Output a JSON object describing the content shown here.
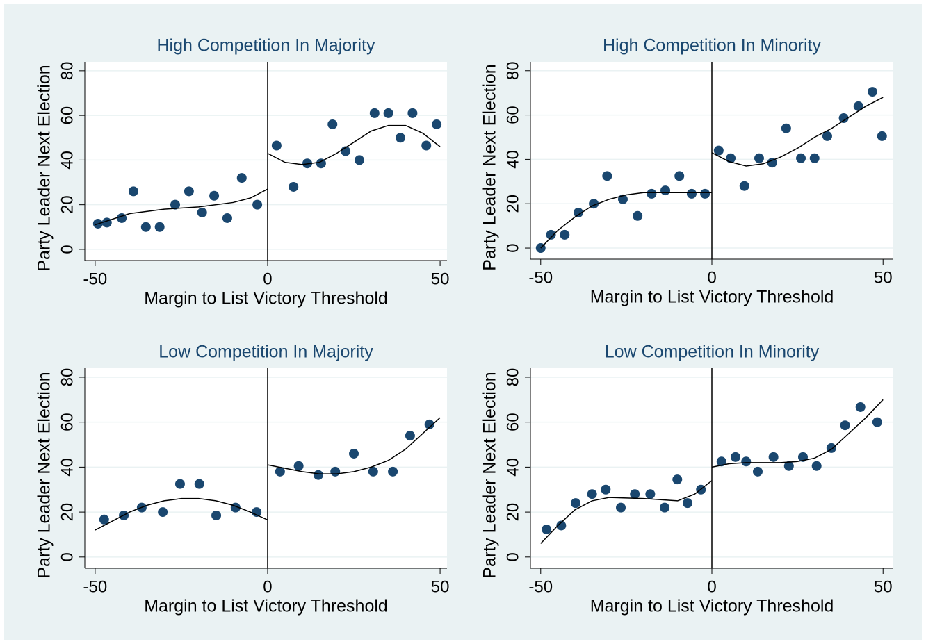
{
  "chart_data": [
    {
      "type": "scatter",
      "title": "High Competition In Majority",
      "xlabel": "Margin to List Victory Threshold",
      "ylabel": "Party Leader Next Election",
      "xlim": [
        -53,
        52
      ],
      "ylim": [
        -5,
        84
      ],
      "xticks": [
        -50,
        0,
        50
      ],
      "yticks": [
        0,
        20,
        40,
        60,
        80
      ],
      "grid": true,
      "vline": 0,
      "series": [
        {
          "type": "scatter",
          "color": "#1a476f",
          "x": [
            -49.2,
            -46.6,
            -42.3,
            -38.9,
            -35.3,
            -31.3,
            -26.8,
            -22.8,
            -19,
            -15.5,
            -11.7,
            -7.5,
            -3,
            2.6,
            7.5,
            11.5,
            15.5,
            18.8,
            22.6,
            26.6,
            31,
            35,
            38.5,
            42,
            46,
            49
          ],
          "values": [
            11.5,
            12,
            14,
            26,
            10,
            10,
            20,
            26,
            16.5,
            24,
            14,
            32,
            20,
            46.5,
            28,
            38.5,
            38.5,
            56,
            44,
            40,
            61,
            61,
            50,
            61,
            46.5,
            56
          ]
        },
        {
          "type": "line",
          "color": "#000000",
          "x": [
            -50,
            -40,
            -30,
            -20,
            -10,
            -5,
            0
          ],
          "values": [
            11,
            16,
            18,
            19,
            21,
            23,
            27
          ]
        },
        {
          "type": "line",
          "color": "#000000",
          "x": [
            0,
            5,
            10,
            15,
            20,
            25,
            30,
            35,
            40,
            45,
            50
          ],
          "values": [
            43,
            39,
            38,
            39,
            43,
            48,
            53,
            55.5,
            55.5,
            52,
            46
          ]
        }
      ]
    },
    {
      "type": "scatter",
      "title": "High Competition In Minority",
      "xlabel": "Margin to List Victory Threshold",
      "ylabel": "Party Leader Next Election",
      "xlim": [
        -53,
        53
      ],
      "ylim": [
        -5,
        84
      ],
      "xticks": [
        -50,
        0,
        50
      ],
      "yticks": [
        0,
        20,
        40,
        60,
        80
      ],
      "grid": true,
      "vline": 0,
      "series": [
        {
          "type": "scatter",
          "color": "#1a476f",
          "x": [
            -50,
            -47,
            -43,
            -39,
            -34.5,
            -30.6,
            -26,
            -21.7,
            -17.6,
            -13.6,
            -9.5,
            -5.9,
            -2,
            2,
            5.5,
            9.5,
            13.8,
            17.6,
            21.7,
            26,
            30,
            33.7,
            38.5,
            42.8,
            46.9,
            49.7
          ],
          "values": [
            0,
            6,
            6,
            16,
            20,
            32.5,
            22,
            14.5,
            24.5,
            26,
            32.5,
            24.5,
            24.5,
            44,
            40.5,
            28,
            40.5,
            38.5,
            54,
            40.5,
            40.5,
            50.5,
            58.6,
            64,
            70.5,
            50.5
          ]
        },
        {
          "type": "line",
          "color": "#000000",
          "x": [
            -50,
            -45,
            -40,
            -35,
            -30,
            -25,
            -20,
            -10,
            0
          ],
          "values": [
            0,
            8,
            14,
            19,
            22,
            24,
            25,
            25,
            25
          ]
        },
        {
          "type": "line",
          "color": "#000000",
          "x": [
            0,
            5,
            10,
            15,
            20,
            25,
            30,
            35,
            40,
            45,
            50
          ],
          "values": [
            43,
            39,
            37,
            38,
            41,
            45,
            50,
            54,
            59,
            64,
            68
          ]
        }
      ]
    },
    {
      "type": "scatter",
      "title": "Low Competition In Majority",
      "xlabel": "Margin to List Victory Threshold",
      "ylabel": "Party Leader Next Election",
      "xlim": [
        -53,
        52
      ],
      "ylim": [
        -5,
        84
      ],
      "xticks": [
        -50,
        0,
        50
      ],
      "yticks": [
        0,
        20,
        40,
        60,
        80
      ],
      "grid": true,
      "vline": 0,
      "series": [
        {
          "type": "scatter",
          "color": "#1a476f",
          "x": [
            -47.4,
            -41.7,
            -36.5,
            -30.4,
            -25.4,
            -19.8,
            -14.9,
            -9.3,
            -3.2,
            3.6,
            9,
            14.7,
            19.6,
            25,
            30.6,
            36.3,
            41.3,
            46.9
          ],
          "values": [
            16.7,
            18.5,
            22,
            20,
            32.5,
            32.5,
            18.5,
            22,
            20,
            38,
            40.5,
            36.5,
            38,
            46,
            38,
            38,
            54,
            59
          ]
        },
        {
          "type": "line",
          "color": "#000000",
          "x": [
            -50,
            -45,
            -40,
            -35,
            -30,
            -25,
            -20,
            -15,
            -10,
            -5,
            0
          ],
          "values": [
            12,
            16,
            20,
            23,
            25,
            26,
            26,
            25,
            23,
            20,
            16.5
          ]
        },
        {
          "type": "line",
          "color": "#000000",
          "x": [
            0,
            5,
            10,
            15,
            20,
            25,
            30,
            35,
            40,
            45,
            50
          ],
          "values": [
            41,
            39.5,
            38,
            37,
            37,
            38,
            40,
            43,
            48,
            55,
            62
          ]
        }
      ]
    },
    {
      "type": "scatter",
      "title": "Low Competition In Minority",
      "xlabel": "Margin to List Victory Threshold",
      "ylabel": "Party Leader Next Election",
      "xlim": [
        -53,
        53
      ],
      "ylim": [
        -5,
        84
      ],
      "xticks": [
        -50,
        0,
        50
      ],
      "yticks": [
        0,
        20,
        40,
        60,
        80
      ],
      "grid": true,
      "vline": 0,
      "series": [
        {
          "type": "scatter",
          "color": "#1a476f",
          "x": [
            -48.3,
            -44,
            -39.8,
            -35,
            -31,
            -26.6,
            -22.5,
            -18,
            -13.8,
            -10.1,
            -7.1,
            -3.2,
            2.8,
            6.9,
            10,
            13.4,
            18,
            22.5,
            26.6,
            30.6,
            34.9,
            38.9,
            43.4,
            48.3
          ],
          "values": [
            12.3,
            14,
            24,
            28,
            30,
            22,
            28,
            28,
            22,
            34.5,
            24,
            30,
            42.5,
            44.5,
            42.5,
            38,
            44.5,
            40.5,
            44.5,
            40.5,
            48.5,
            58.6,
            66.7,
            60
          ]
        },
        {
          "type": "line",
          "color": "#000000",
          "x": [
            -50,
            -45,
            -40,
            -35,
            -30,
            -20,
            -10,
            -5,
            0
          ],
          "values": [
            6,
            14,
            21,
            25,
            26.5,
            26,
            25,
            28,
            34
          ]
        },
        {
          "type": "line",
          "color": "#000000",
          "x": [
            0,
            5,
            10,
            20,
            25,
            30,
            35,
            40,
            45,
            50
          ],
          "values": [
            40,
            41.5,
            42,
            42,
            42.5,
            44,
            48,
            55,
            62,
            70
          ]
        }
      ]
    }
  ]
}
